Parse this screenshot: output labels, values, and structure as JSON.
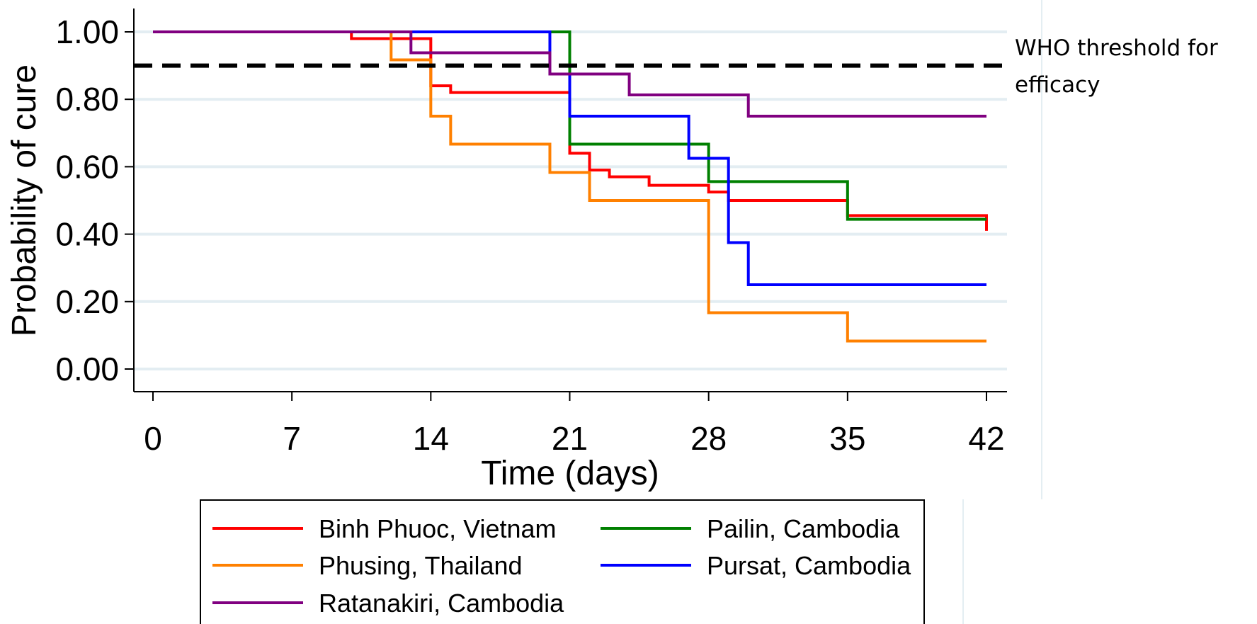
{
  "chart_data": {
    "type": "line",
    "step": true,
    "xlabel": "Time (days)",
    "ylabel": "Probability of cure",
    "xlim": [
      0,
      42
    ],
    "ylim": [
      0,
      1
    ],
    "x_ticks": [
      "0",
      "7",
      "14",
      "21",
      "28",
      "35",
      "42"
    ],
    "y_ticks": [
      "0.00",
      "0.20",
      "0.40",
      "0.60",
      "0.80",
      "1.00"
    ],
    "grid": "horizontal",
    "legend_position": "bottom",
    "reference_line": {
      "y": 0.9,
      "style": "dashed",
      "label": "WHO threshold for efficacy"
    },
    "series": [
      {
        "name": "Binh Phuoc, Vietnam",
        "color": "#ff0000",
        "x": [
          0,
          10,
          14,
          15,
          21,
          22,
          23,
          25,
          28,
          29,
          35,
          42,
          42
        ],
        "y": [
          1.0,
          0.98,
          0.84,
          0.82,
          0.64,
          0.59,
          0.57,
          0.545,
          0.525,
          0.5,
          0.455,
          0.455,
          0.41
        ]
      },
      {
        "name": "Pailin, Cambodia",
        "color": "#008000",
        "x": [
          0,
          21,
          28,
          35,
          42
        ],
        "y": [
          1.0,
          0.667,
          0.556,
          0.444,
          0.444
        ]
      },
      {
        "name": "Phusing, Thailand",
        "color": "#ff8000",
        "x": [
          0,
          12,
          14,
          15,
          20,
          22,
          28,
          35,
          42
        ],
        "y": [
          1.0,
          0.917,
          0.75,
          0.667,
          0.583,
          0.5,
          0.167,
          0.083,
          0.083
        ]
      },
      {
        "name": "Pursat, Cambodia",
        "color": "#0000ff",
        "x": [
          0,
          20,
          21,
          27,
          29,
          30,
          42
        ],
        "y": [
          1.0,
          0.875,
          0.75,
          0.625,
          0.375,
          0.25,
          0.25
        ]
      },
      {
        "name": "Ratanakiri, Cambodia",
        "color": "#800080",
        "x": [
          0,
          13,
          20,
          24,
          30,
          42
        ],
        "y": [
          1.0,
          0.938,
          0.875,
          0.813,
          0.75,
          0.75
        ]
      }
    ]
  }
}
